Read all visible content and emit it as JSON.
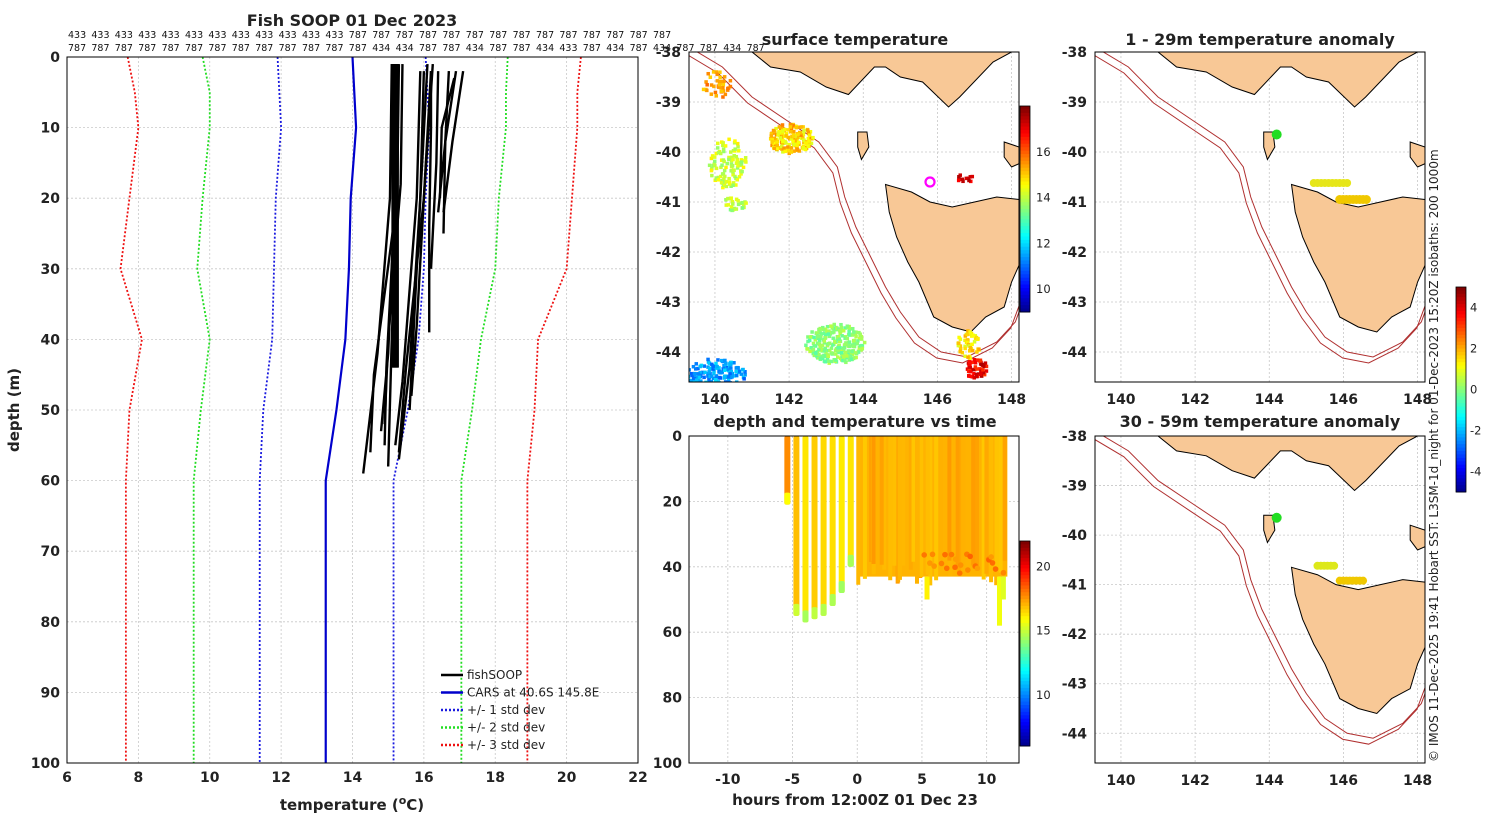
{
  "chart_data": [
    {
      "type": "line",
      "title": "Fish SOOP 01 Dec 2023",
      "xlabel": "temperature (",
      "xlabel_sup": "o",
      "xlabel_end": "C)",
      "ylabel": "depth (m)",
      "xlim": [
        6,
        22
      ],
      "ylim": [
        100,
        0
      ],
      "xticks": [
        6,
        8,
        10,
        12,
        14,
        16,
        18,
        20,
        22
      ],
      "yticks": [
        0,
        10,
        20,
        30,
        40,
        50,
        60,
        70,
        80,
        90,
        100
      ],
      "vessel_ids_row1": [
        "433",
        "433",
        "433",
        "433",
        "433",
        "433",
        "433",
        "433",
        "433",
        "433",
        "433",
        "433",
        "787",
        "787",
        "787",
        "787",
        "787",
        "787",
        "787",
        "787",
        "787",
        "787",
        "787",
        "787",
        "787",
        "787"
      ],
      "vessel_ids_row2": [
        "787",
        "787",
        "787",
        "787",
        "787",
        "787",
        "787",
        "787",
        "787",
        "787",
        "787",
        "787",
        "787",
        "434",
        "434",
        "787",
        "787",
        "434",
        "787",
        "787",
        "434",
        "433",
        "787",
        "434",
        "787",
        "434",
        "787",
        "787",
        "434",
        "787"
      ],
      "legend": [
        "fishSOOP",
        "CARS at 40.6S 145.8E",
        "+/- 1 std dev",
        "+/- 2 std dev",
        "+/- 3 std dev"
      ],
      "colors": {
        "fishsoop": "#000000",
        "cars": "#0000cc",
        "std1": "#1a1adf",
        "std2": "#22dd22",
        "std3": "#ee1111"
      },
      "depths": [
        0,
        5,
        10,
        20,
        30,
        40,
        50,
        60,
        70,
        80,
        90,
        100
      ],
      "series": [
        {
          "name": "CARS mean",
          "values": [
            14.0,
            14.05,
            14.1,
            13.95,
            13.9,
            13.8,
            13.55,
            13.25,
            13.25,
            13.25,
            13.25,
            13.25
          ]
        },
        {
          "name": "-1 std",
          "values": [
            11.9,
            11.95,
            12.0,
            11.85,
            11.8,
            11.75,
            11.5,
            11.4,
            11.4,
            11.4,
            11.4,
            11.4
          ]
        },
        {
          "name": "+1 std",
          "values": [
            16.05,
            16.1,
            16.15,
            16.05,
            16.0,
            15.85,
            15.55,
            15.15,
            15.15,
            15.15,
            15.15,
            15.15
          ]
        },
        {
          "name": "-2 std",
          "values": [
            9.8,
            10.0,
            10.0,
            9.8,
            9.65,
            10.0,
            9.75,
            9.55,
            9.55,
            9.55,
            9.55,
            9.55
          ]
        },
        {
          "name": "+2 std",
          "values": [
            18.35,
            18.3,
            18.3,
            18.1,
            18.0,
            17.6,
            17.35,
            17.05,
            17.05,
            17.05,
            17.05,
            17.05
          ]
        },
        {
          "name": "-3 std",
          "values": [
            7.7,
            7.9,
            8.0,
            7.75,
            7.5,
            8.1,
            7.75,
            7.65,
            7.65,
            7.65,
            7.65,
            7.65
          ]
        },
        {
          "name": "+3 std",
          "values": [
            20.4,
            20.3,
            20.3,
            20.15,
            20.0,
            19.2,
            19.1,
            18.9,
            18.9,
            18.9,
            18.9,
            18.9
          ]
        }
      ],
      "fishsoop_profiles": [
        {
          "d": [
            1,
            20,
            40,
            58
          ],
          "t": [
            15.25,
            15.25,
            15.1,
            15.0
          ]
        },
        {
          "d": [
            1,
            20,
            45,
            56
          ],
          "t": [
            15.3,
            15.25,
            14.6,
            14.5
          ]
        },
        {
          "d": [
            1,
            20,
            42,
            59
          ],
          "t": [
            15.1,
            15.05,
            14.7,
            14.3
          ]
        },
        {
          "d": [
            1,
            20,
            44,
            55
          ],
          "t": [
            15.2,
            15.2,
            14.95,
            14.9
          ]
        },
        {
          "d": [
            1,
            18,
            40,
            52
          ],
          "t": [
            15.4,
            15.35,
            15.0,
            14.9
          ]
        },
        {
          "d": [
            1,
            18,
            42,
            53
          ],
          "t": [
            15.2,
            15.2,
            15.0,
            14.8
          ]
        },
        {
          "d": [
            2,
            20,
            44,
            57
          ],
          "t": [
            16.0,
            15.9,
            15.6,
            15.3
          ]
        },
        {
          "d": [
            2,
            20,
            46,
            55
          ],
          "t": [
            15.9,
            15.8,
            15.4,
            15.2
          ]
        },
        {
          "d": [
            2,
            20,
            44,
            56
          ],
          "t": [
            16.2,
            16.0,
            15.5,
            15.3
          ]
        },
        {
          "d": [
            1,
            20,
            40,
            50
          ],
          "t": [
            16.1,
            15.9,
            15.7,
            15.6
          ]
        },
        {
          "d": [
            1,
            20,
            38,
            48
          ],
          "t": [
            16.25,
            16.0,
            15.8,
            15.65
          ]
        },
        {
          "d": [
            2,
            12,
            22
          ],
          "t": [
            16.9,
            16.6,
            16.4
          ]
        },
        {
          "d": [
            2,
            12,
            22
          ],
          "t": [
            17.1,
            16.8,
            16.55
          ]
        },
        {
          "d": [
            3,
            10,
            20
          ],
          "t": [
            16.85,
            16.5,
            16.45
          ]
        },
        {
          "d": [
            2,
            12,
            25
          ],
          "t": [
            16.7,
            16.6,
            16.55
          ]
        },
        {
          "d": [
            2,
            10,
            24,
            39
          ],
          "t": [
            16.2,
            16.2,
            16.15,
            16.15
          ]
        },
        {
          "d": [
            2,
            15,
            30
          ],
          "t": [
            16.4,
            16.35,
            16.2
          ]
        }
      ]
    },
    {
      "type": "heatmap",
      "title": "surface temperature",
      "xticks": [
        140,
        142,
        144,
        146,
        148
      ],
      "yticks": [
        -38,
        -39,
        -40,
        -41,
        -42,
        -43,
        -44
      ],
      "xlim": [
        139.3,
        148.2
      ],
      "ylim": [
        -44.6,
        -38
      ],
      "colorbar_ticks": [
        10,
        12,
        14,
        16
      ],
      "colorbar_range": [
        9,
        18
      ],
      "marker": {
        "lon": 145.8,
        "lat": -40.6,
        "color": "#ff00ff"
      }
    },
    {
      "type": "scatter",
      "title": "depth and temperature vs time",
      "xlabel": "hours from 12:00Z 01 Dec 23",
      "xticks": [
        -10,
        -5,
        0,
        5,
        10
      ],
      "yticks": [
        0,
        20,
        40,
        60,
        80,
        100
      ],
      "xlim": [
        -13,
        12.5
      ],
      "ylim": [
        100,
        0
      ],
      "colorbar_ticks": [
        10,
        15,
        20
      ],
      "colorbar_range": [
        6,
        22
      ],
      "casts": [
        {
          "h": -5.4,
          "maxd": 21,
          "temp": 17.8
        },
        {
          "h": -4.7,
          "maxd": 55,
          "temp": 17.0
        },
        {
          "h": -4.0,
          "maxd": 57,
          "temp": 16.4
        },
        {
          "h": -3.3,
          "maxd": 56,
          "temp": 16.8
        },
        {
          "h": -2.6,
          "maxd": 55,
          "temp": 16.6
        },
        {
          "h": -1.9,
          "maxd": 52,
          "temp": 16.5
        },
        {
          "h": -1.2,
          "maxd": 48,
          "temp": 16.3
        },
        {
          "h": -0.5,
          "maxd": 40,
          "temp": 16.4
        }
      ]
    },
    {
      "type": "heatmap",
      "title": "1 - 29m temperature anomaly",
      "xticks": [
        140,
        142,
        144,
        146,
        148
      ],
      "yticks": [
        -38,
        -39,
        -40,
        -41,
        -42,
        -43,
        -44
      ]
    },
    {
      "type": "heatmap",
      "title": "30 - 59m temperature anomaly",
      "xticks": [
        140,
        142,
        144,
        146,
        148
      ],
      "yticks": [
        -38,
        -39,
        -40,
        -41,
        -42,
        -43,
        -44
      ]
    }
  ],
  "anomaly_colorbar_ticks": [
    4,
    2,
    0,
    -2,
    -4
  ],
  "isobaths_text": "IMOS 11-Dec-2025 19:41 Hobart SST: L3SM-1d_night for 01-Dec-2023 15:20Z isobaths: 200  1000m",
  "copyright_symbol": "©"
}
